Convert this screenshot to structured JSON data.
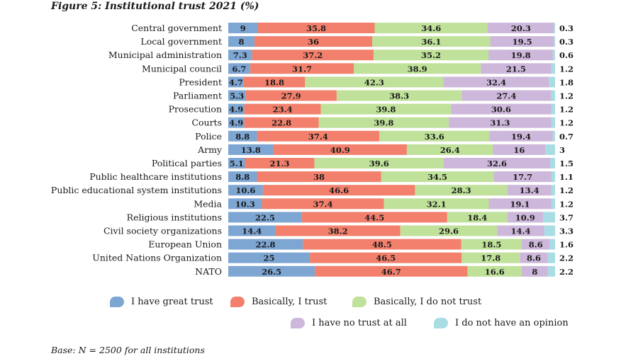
{
  "figure": {
    "title": "Figure 5: Institutional trust 2021 (%)",
    "note": "Base: N = 2500 for all institutions"
  },
  "colors": {
    "great_trust": "#7ea6d3",
    "basically_trust": "#f2806c",
    "not_trust": "#bfe19a",
    "no_trust": "#cdb7da",
    "no_opinion": "#a9dde4"
  },
  "chart_data": {
    "type": "bar",
    "orientation": "horizontal",
    "stacked": true,
    "xlim": [
      0,
      100
    ],
    "grid": false,
    "legend_position": "bottom",
    "categories": [
      "Central government",
      "Local government",
      "Municipal administration",
      "Municipal council",
      "President",
      "Parliament",
      "Prosecution",
      "Courts",
      "Police",
      "Army",
      "Political parties",
      "Public healthcare institutions",
      "Public educational system institutions",
      "Media",
      "Religious institutions",
      "Civil society organizations",
      "European Union",
      "United Nations Organization",
      "NATO"
    ],
    "series": [
      {
        "name": "I have great trust",
        "color_key": "great_trust",
        "values": [
          9,
          8,
          7.3,
          6.7,
          4.7,
          5.3,
          4.9,
          4.9,
          8.8,
          13.8,
          5.1,
          8.8,
          10.6,
          10.3,
          22.5,
          14.4,
          22.8,
          25,
          26.5
        ]
      },
      {
        "name": "Basically, I trust",
        "color_key": "basically_trust",
        "values": [
          35.8,
          36,
          37.2,
          31.7,
          18.8,
          27.9,
          23.4,
          22.8,
          37.4,
          40.9,
          21.3,
          38,
          46.6,
          37.4,
          44.5,
          38.2,
          48.5,
          46.5,
          46.7
        ]
      },
      {
        "name": "Basically, I do not trust",
        "color_key": "not_trust",
        "values": [
          34.6,
          36.1,
          35.2,
          38.9,
          42.3,
          38.3,
          39.8,
          39.8,
          33.6,
          26.4,
          39.6,
          34.5,
          28.3,
          32.1,
          18.4,
          29.6,
          18.5,
          17.8,
          16.6
        ]
      },
      {
        "name": "I have no trust at all",
        "color_key": "no_trust",
        "values": [
          20.3,
          19.5,
          19.8,
          21.5,
          32.4,
          27.4,
          30.6,
          31.3,
          19.4,
          16,
          32.6,
          17.7,
          13.4,
          19.1,
          10.9,
          14.4,
          8.6,
          8.6,
          8
        ]
      },
      {
        "name": "I do not have an opinion",
        "color_key": "no_opinion",
        "values": [
          0.3,
          0.3,
          0.6,
          1.2,
          1.8,
          1.2,
          1.2,
          1.2,
          0.7,
          3,
          1.5,
          1.1,
          1.2,
          1.2,
          3.7,
          3.3,
          1.6,
          2.2,
          2.2
        ]
      }
    ]
  }
}
